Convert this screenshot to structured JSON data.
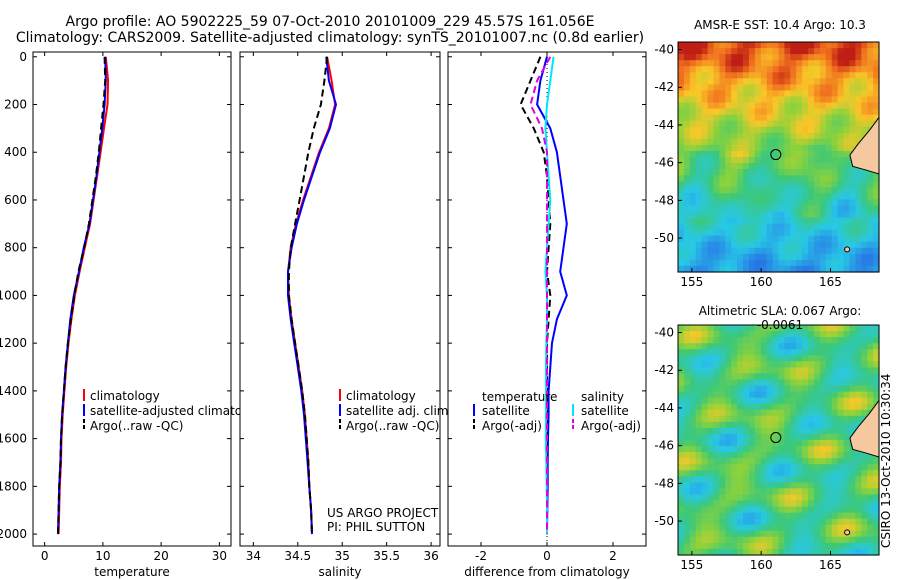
{
  "header": {
    "line1": "Argo profile: AO 5902225_59 07-Oct-2010 20101009_229 45.57S 161.056E",
    "line2": "Climatology: CARS2009. Satellite-adjusted climatology: synTS_20101007.nc (0.8d earlier)"
  },
  "credit": {
    "line1": "US ARGO PROJECT",
    "line2": "PI: PHIL SUTTON"
  },
  "stamp": "CSIRO 13-Oct-2010 10:30:34",
  "colors": {
    "climatology": "#ff0000",
    "satellite": "#0000ff",
    "argo": "#000000",
    "sal_satellite": "#00e5ff",
    "sal_argo": "#e000e0"
  },
  "chart_data": [
    {
      "type": "line",
      "id": "temperature",
      "xlabel": "temperature",
      "xlim": [
        -2,
        32
      ],
      "ylim": [
        2050,
        -20
      ],
      "xticks": [
        0,
        10,
        20,
        30
      ],
      "yticks": [
        0,
        200,
        400,
        600,
        800,
        1000,
        1200,
        1400,
        1600,
        1800,
        2000
      ],
      "depth": [
        0,
        100,
        200,
        300,
        400,
        500,
        600,
        700,
        800,
        900,
        1000,
        1100,
        1200,
        1300,
        1400,
        1500,
        1600,
        1700,
        1800,
        1900,
        2000
      ],
      "legend": [
        "climatology",
        "satellite-adjusted climatology",
        "Argo(..raw -QC)"
      ],
      "series": [
        {
          "name": "climatology",
          "color": "#ff0000",
          "style": "solid",
          "values": [
            10.5,
            10.9,
            10.8,
            10.2,
            9.6,
            9.0,
            8.4,
            7.8,
            6.9,
            6.0,
            5.2,
            4.6,
            4.1,
            3.7,
            3.4,
            3.1,
            2.9,
            2.8,
            2.6,
            2.5,
            2.4
          ]
        },
        {
          "name": "satellite-adjusted climatology",
          "color": "#0000ff",
          "style": "solid",
          "values": [
            10.4,
            10.5,
            10.3,
            9.9,
            9.4,
            8.9,
            8.3,
            7.7,
            6.7,
            5.9,
            5.0,
            4.4,
            4.0,
            3.6,
            3.3,
            3.0,
            2.8,
            2.7,
            2.5,
            2.4,
            2.3
          ]
        },
        {
          "name": "Argo(..raw -QC)",
          "color": "#000000",
          "style": "dash",
          "values": [
            10.3,
            10.4,
            10.1,
            9.7,
            9.3,
            8.8,
            8.2,
            7.6,
            6.8,
            5.8,
            5.1,
            4.5,
            4.0,
            3.6,
            3.3,
            3.0,
            2.8,
            2.7,
            2.5,
            2.4,
            2.3
          ]
        }
      ]
    },
    {
      "type": "line",
      "id": "salinity",
      "xlabel": "salinity",
      "xlim": [
        33.85,
        36.1
      ],
      "ylim": [
        2050,
        -20
      ],
      "xticks": [
        34,
        34.5,
        35,
        35.5,
        36
      ],
      "depth": [
        0,
        100,
        200,
        300,
        400,
        500,
        600,
        700,
        800,
        900,
        1000,
        1100,
        1200,
        1300,
        1400,
        1500,
        1600,
        1700,
        1800,
        1900,
        2000
      ],
      "legend": [
        "climatology",
        "satellite adj. clim.",
        "Argo(..raw -QC)"
      ],
      "series": [
        {
          "name": "climatology",
          "color": "#ff0000",
          "style": "solid",
          "values": [
            34.83,
            34.88,
            34.92,
            34.85,
            34.74,
            34.65,
            34.56,
            34.48,
            34.42,
            34.39,
            34.4,
            34.43,
            34.47,
            34.51,
            34.55,
            34.58,
            34.6,
            34.62,
            34.63,
            34.65,
            34.66
          ]
        },
        {
          "name": "satellite adj. clim.",
          "color": "#0000ff",
          "style": "solid",
          "values": [
            34.82,
            34.85,
            34.93,
            34.86,
            34.75,
            34.66,
            34.57,
            34.49,
            34.43,
            34.39,
            34.39,
            34.42,
            34.46,
            34.5,
            34.54,
            34.57,
            34.59,
            34.61,
            34.63,
            34.65,
            34.66
          ]
        },
        {
          "name": "Argo(..raw -QC)",
          "color": "#000000",
          "style": "dash",
          "values": [
            34.83,
            34.8,
            34.76,
            34.68,
            34.62,
            34.57,
            34.52,
            34.47,
            34.42,
            34.4,
            34.4,
            34.43,
            34.47,
            34.51,
            34.55,
            34.58,
            34.6,
            34.62,
            34.63,
            34.65,
            34.66
          ]
        }
      ]
    },
    {
      "type": "line",
      "id": "difference",
      "xlabel": "difference from climatology",
      "xlim": [
        -3,
        3
      ],
      "ylim": [
        2050,
        -20
      ],
      "xticks": [
        -2,
        0,
        2
      ],
      "depth": [
        0,
        100,
        200,
        300,
        400,
        500,
        600,
        700,
        800,
        900,
        1000,
        1100,
        1200,
        1300,
        1400,
        1500,
        1600,
        1700,
        1800,
        1900,
        2000
      ],
      "legend_titles": [
        "temperature",
        "salinity"
      ],
      "legend": [
        "satellite",
        "Argo(-adj)",
        "satellite",
        "Argo(-adj)"
      ],
      "series": [
        {
          "name": "temperature satellite",
          "color": "#0000ff",
          "style": "solid",
          "values": [
            0.0,
            -0.2,
            -0.3,
            0.1,
            0.3,
            0.4,
            0.5,
            0.6,
            0.5,
            0.4,
            0.6,
            0.3,
            0.15,
            0.1,
            0.05,
            0.05,
            0.03,
            0.02,
            0.02,
            0.01,
            0.0
          ]
        },
        {
          "name": "temperature Argo(-adj)",
          "color": "#000000",
          "style": "dash",
          "values": [
            -0.2,
            -0.5,
            -0.8,
            -0.4,
            -0.1,
            0.0,
            0.05,
            0.1,
            0.05,
            0.0,
            0.1,
            0.05,
            0.0,
            0.0,
            0.0,
            0.0,
            0.0,
            0.0,
            0.0,
            0.0,
            0.0
          ]
        },
        {
          "name": "salinity satellite",
          "color": "#00e5ff",
          "style": "solid",
          "values": [
            0.2,
            0.1,
            0.0,
            -0.05,
            0.0,
            0.05,
            0.1,
            0.05,
            0.0,
            -0.05,
            0.0,
            0.0,
            -0.02,
            -0.03,
            -0.03,
            -0.03,
            -0.04,
            -0.02,
            -0.01,
            0.0,
            0.0
          ]
        },
        {
          "name": "salinity Argo(-adj)",
          "color": "#e000e0",
          "style": "dash",
          "values": [
            0.1,
            -0.3,
            -0.5,
            -0.15,
            0.0,
            0.0,
            0.0,
            0.0,
            0.0,
            0.0,
            0.0,
            0.0,
            0.0,
            0.0,
            0.0,
            0.0,
            0.0,
            0.0,
            0.0,
            0.0,
            0.0
          ]
        }
      ]
    },
    {
      "type": "heatmap",
      "id": "sst-map",
      "title": "AMSR-E SST: 10.4  Argo: 10.3",
      "xlim": [
        154,
        168.5
      ],
      "ylim": [
        -51.8,
        -39.6
      ],
      "xticks": [
        155,
        160,
        165
      ],
      "yticks": [
        -40,
        -42,
        -44,
        -46,
        -48,
        -50
      ],
      "float_position": {
        "lon": 161.056,
        "lat": -45.57
      }
    },
    {
      "type": "heatmap",
      "id": "sla-map",
      "title": "Altimetric SLA: 0.067  Argo: -0.0061",
      "xlim": [
        154,
        168.5
      ],
      "ylim": [
        -51.8,
        -39.6
      ],
      "xticks": [
        155,
        160,
        165
      ],
      "yticks": [
        -40,
        -42,
        -44,
        -46,
        -48,
        -50
      ],
      "float_position": {
        "lon": 161.056,
        "lat": -45.57
      }
    }
  ]
}
